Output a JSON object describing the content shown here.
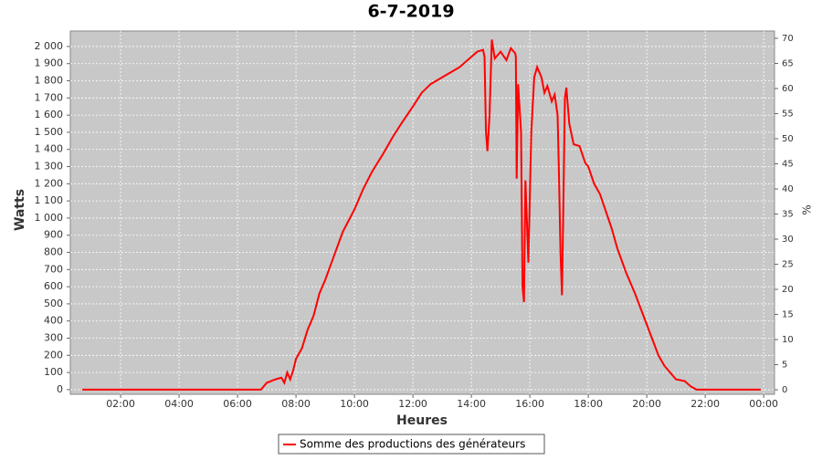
{
  "chart_data": {
    "type": "line",
    "title": "6-7-2019",
    "x_label": "Heures",
    "y_label": "Watts",
    "y2_label": "%",
    "x": [
      0.69,
      2,
      4,
      6,
      6.8,
      7.0,
      7.3,
      7.5,
      7.6,
      7.7,
      7.8,
      7.9,
      8.0,
      8.2,
      8.4,
      8.6,
      8.8,
      9.0,
      9.3,
      9.6,
      10.0,
      10.3,
      10.6,
      11.0,
      11.3,
      11.6,
      12.0,
      12.3,
      12.6,
      13.0,
      13.3,
      13.6,
      14.0,
      14.2,
      14.4,
      14.45,
      14.5,
      14.55,
      14.62,
      14.7,
      14.8,
      15.0,
      15.2,
      15.35,
      15.5,
      15.52,
      15.55,
      15.6,
      15.7,
      15.75,
      15.8,
      15.85,
      15.95,
      16.05,
      16.15,
      16.25,
      16.4,
      16.5,
      16.6,
      16.75,
      16.85,
      16.95,
      17.0,
      17.05,
      17.1,
      17.15,
      17.2,
      17.25,
      17.35,
      17.5,
      17.7,
      17.9,
      18.0,
      18.2,
      18.4,
      18.6,
      18.8,
      19.0,
      19.3,
      19.6,
      19.8,
      20.0,
      20.2,
      20.4,
      20.6,
      20.8,
      21.0,
      21.3,
      21.5,
      21.7,
      22.0,
      23.9
    ],
    "series": [
      {
        "name": "Somme des productions des  générateurs",
        "color": "#ff0000",
        "values": [
          0,
          0,
          0,
          0,
          0,
          40,
          60,
          70,
          40,
          100,
          60,
          110,
          180,
          240,
          350,
          430,
          560,
          640,
          780,
          920,
          1050,
          1170,
          1270,
          1380,
          1470,
          1550,
          1650,
          1730,
          1780,
          1820,
          1850,
          1880,
          1940,
          1970,
          1980,
          1940,
          1500,
          1390,
          1600,
          2040,
          1930,
          1970,
          1920,
          1990,
          1960,
          1940,
          1230,
          1780,
          1500,
          600,
          510,
          1220,
          740,
          1500,
          1820,
          1880,
          1820,
          1730,
          1770,
          1680,
          1720,
          1600,
          1230,
          800,
          550,
          1100,
          1700,
          1760,
          1550,
          1430,
          1420,
          1320,
          1300,
          1200,
          1140,
          1040,
          940,
          820,
          680,
          560,
          470,
          380,
          290,
          200,
          140,
          100,
          60,
          50,
          20,
          0,
          0,
          0
        ]
      }
    ],
    "xlim": [
      0.28,
      24.37
    ],
    "xticks": [
      {
        "value": 2,
        "label": "02:00"
      },
      {
        "value": 4,
        "label": "04:00"
      },
      {
        "value": 6,
        "label": "06:00"
      },
      {
        "value": 8,
        "label": "08:00"
      },
      {
        "value": 10,
        "label": "10:00"
      },
      {
        "value": 12,
        "label": "12:00"
      },
      {
        "value": 14,
        "label": "14:00"
      },
      {
        "value": 16,
        "label": "16:00"
      },
      {
        "value": 18,
        "label": "18:00"
      },
      {
        "value": 20,
        "label": "20:00"
      },
      {
        "value": 22,
        "label": "22:00"
      },
      {
        "value": 24,
        "label": "00:00"
      }
    ],
    "ylim": [
      -27,
      2090
    ],
    "yticks": [
      0,
      100,
      200,
      300,
      400,
      500,
      600,
      700,
      800,
      900,
      {
        "value": 1000,
        "label": "1 000"
      },
      {
        "value": 1100,
        "label": "1 100"
      },
      {
        "value": 1200,
        "label": "1 200"
      },
      {
        "value": 1300,
        "label": "1 300"
      },
      {
        "value": 1400,
        "label": "1 400"
      },
      {
        "value": 1500,
        "label": "1 500"
      },
      {
        "value": 1600,
        "label": "1 600"
      },
      {
        "value": 1700,
        "label": "1 700"
      },
      {
        "value": 1800,
        "label": "1 800"
      },
      {
        "value": 1900,
        "label": "1 900"
      },
      {
        "value": 2000,
        "label": "2 000"
      }
    ],
    "y2lim": [
      -0.9,
      71.45
    ],
    "y2ticks": [
      0,
      5,
      10,
      15,
      20,
      25,
      30,
      35,
      40,
      45,
      50,
      55,
      60,
      65,
      70
    ],
    "grid": true
  }
}
